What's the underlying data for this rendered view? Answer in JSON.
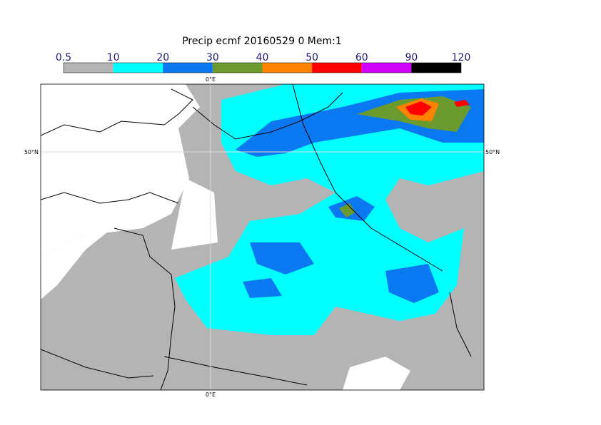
{
  "title": "Precip ecmf 20160529 0 Mem:1",
  "legend": {
    "levels": [
      0.5,
      10,
      20,
      30,
      40,
      50,
      60,
      90,
      120
    ],
    "colors": [
      "#b4b4b4",
      "#00ffff",
      "#0a78f0",
      "#6b9a2e",
      "#ff8200",
      "#ff0000",
      "#d200ff",
      "#000000"
    ]
  },
  "map": {
    "lon_label": "0°E",
    "lat_label": "50°N"
  }
}
